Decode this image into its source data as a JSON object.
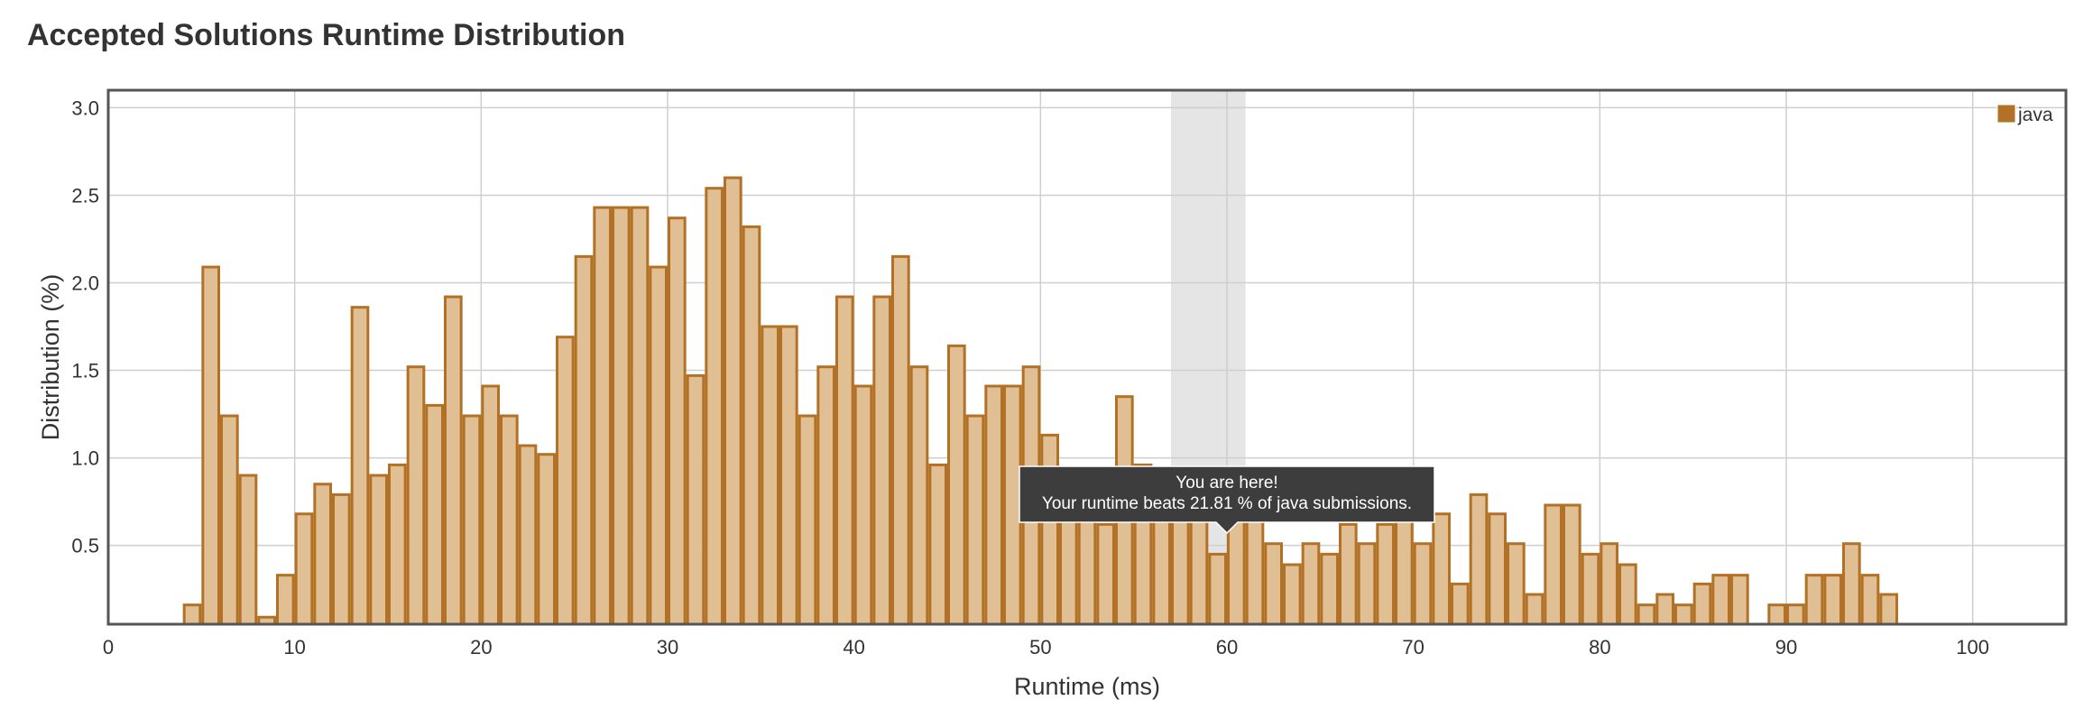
{
  "chart_data": {
    "type": "bar",
    "title": "Accepted Solutions Runtime Distribution",
    "xlabel": "Runtime (ms)",
    "ylabel": "Distribution (%)",
    "xlim": [
      0,
      105
    ],
    "ylim": [
      0.05,
      3.1
    ],
    "xticks": [
      0,
      10,
      20,
      30,
      40,
      50,
      60,
      70,
      80,
      90,
      100
    ],
    "yticks": [
      0.5,
      1.0,
      1.5,
      2.0,
      2.5,
      3.0
    ],
    "ytick_labels": [
      "0.5",
      "1.0",
      "1.5",
      "2.0",
      "2.5",
      "3.0"
    ],
    "grid": true,
    "legend_position": "top-right",
    "bin_width": 1,
    "series": [
      {
        "name": "java",
        "x": [
          4,
          5,
          6,
          7,
          8,
          9,
          10,
          11,
          12,
          13,
          14,
          15,
          16,
          17,
          18,
          19,
          20,
          21,
          22,
          23,
          24,
          25,
          26,
          27,
          28,
          29,
          30,
          31,
          32,
          33,
          34,
          35,
          36,
          37,
          38,
          39,
          40,
          41,
          42,
          43,
          44,
          45,
          46,
          47,
          48,
          49,
          50,
          51,
          52,
          53,
          54,
          55,
          56,
          57,
          58,
          59,
          60,
          61,
          62,
          63,
          64,
          65,
          66,
          67,
          68,
          69,
          70,
          71,
          72,
          73,
          74,
          75,
          76,
          77,
          78,
          79,
          80,
          81,
          82,
          83,
          84,
          85,
          86,
          87,
          88,
          89,
          90,
          91,
          92,
          93,
          94,
          95
        ],
        "values": [
          0.16,
          2.09,
          1.24,
          0.9,
          0.09,
          0.33,
          0.68,
          0.85,
          0.79,
          1.86,
          0.9,
          0.96,
          1.52,
          1.3,
          1.92,
          1.24,
          1.41,
          1.24,
          1.07,
          1.02,
          1.69,
          2.15,
          2.43,
          2.43,
          2.43,
          2.09,
          2.37,
          1.47,
          2.54,
          2.6,
          2.32,
          1.75,
          1.75,
          1.24,
          1.52,
          1.92,
          1.41,
          1.92,
          2.15,
          1.52,
          0.96,
          1.64,
          1.24,
          1.41,
          1.41,
          1.52,
          1.13,
          0.9,
          0.84,
          0.62,
          1.35,
          0.96,
          0.9,
          0.84,
          0.9,
          0.45,
          0.84,
          0.84,
          0.51,
          0.39,
          0.51,
          0.45,
          0.62,
          0.51,
          0.62,
          0.68,
          0.51,
          0.68,
          0.28,
          0.79,
          0.68,
          0.51,
          0.22,
          0.73,
          0.73,
          0.45,
          0.51,
          0.39,
          0.16,
          0.22,
          0.16,
          0.28,
          0.33,
          0.33,
          0,
          0.16,
          0.16,
          0.33,
          0.33,
          0.51,
          0.33,
          0.22
        ]
      }
    ],
    "colors": {
      "bar_fill": "#e1bf94",
      "bar_stroke": "#b27124",
      "legend_swatch": "#b27124",
      "highlight_band": "#e5e5e5",
      "tooltip_bg": "#3d3d3d"
    },
    "highlight": {
      "x_start": 57,
      "x_end": 61
    },
    "tooltip": {
      "line1": "You are here!",
      "line2": "Your runtime beats 21.81 % of java submissions.",
      "anchor_x": 60,
      "anchor_y": 0.55
    }
  }
}
